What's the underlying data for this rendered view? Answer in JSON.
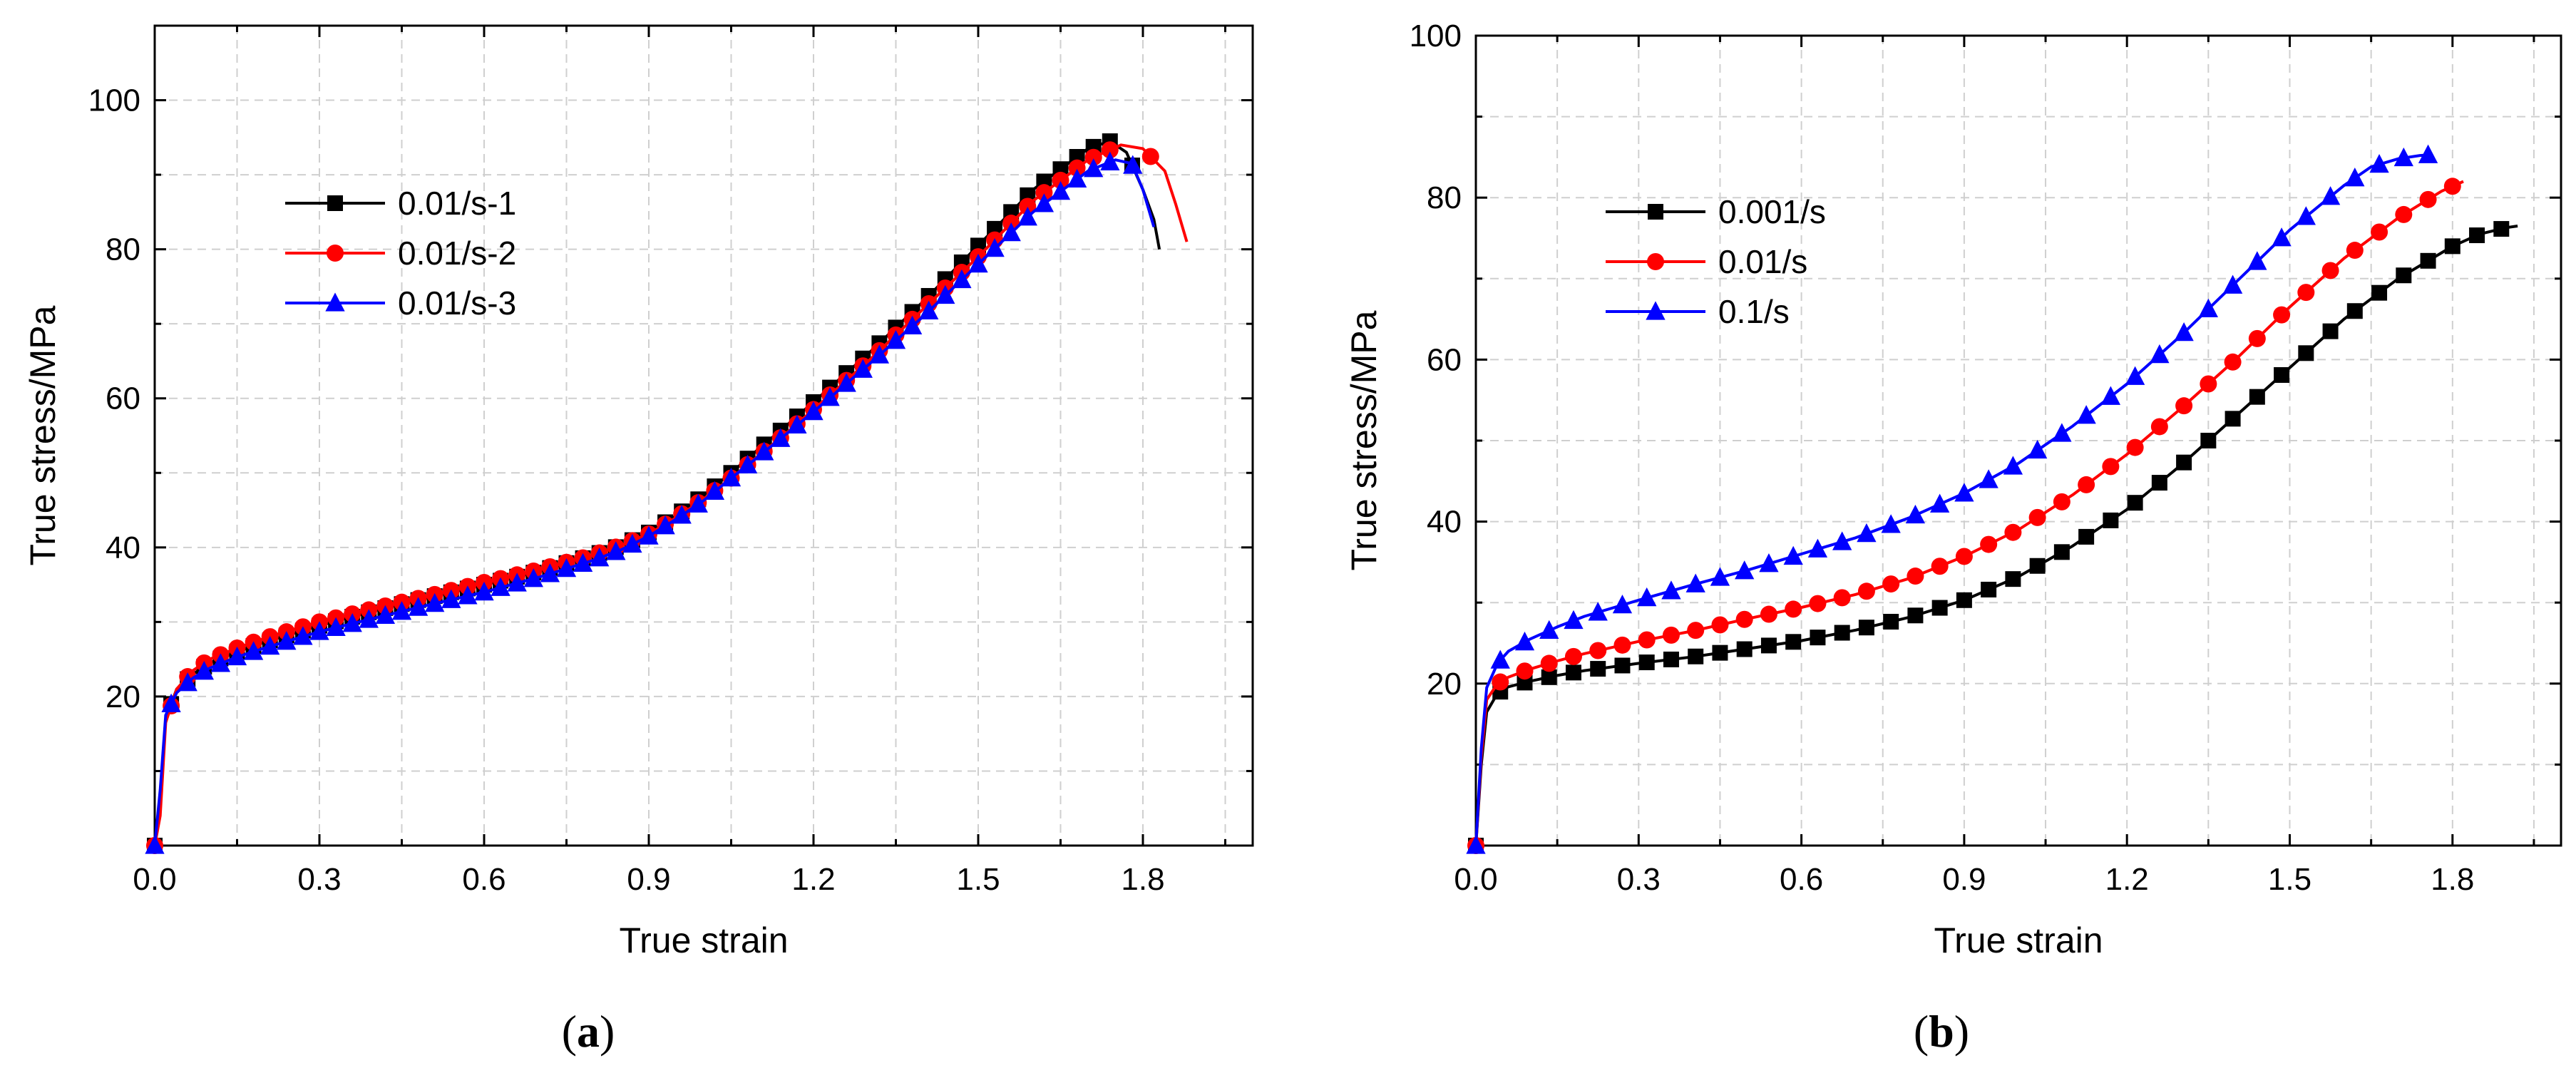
{
  "figure": {
    "panels": [
      "(a)",
      "(b)"
    ]
  },
  "chart_data": [
    {
      "type": "line",
      "panel_label": "(a)",
      "caption_letter": "a",
      "title": "",
      "xlabel": "True strain",
      "ylabel": "True stress/MPa",
      "xlim": [
        0,
        2.0
      ],
      "ylim": [
        0,
        110
      ],
      "xticks": [
        0.0,
        0.3,
        0.6,
        0.9,
        1.2,
        1.5,
        1.8
      ],
      "xtick_labels": [
        "0.0",
        "0.3",
        "0.6",
        "0.9",
        "1.2",
        "1.5",
        "1.8"
      ],
      "yticks": [
        20,
        40,
        60,
        80,
        100
      ],
      "ytick_labels": [
        "20",
        "40",
        "60",
        "80",
        "100"
      ],
      "grid": true,
      "legend_position": "upper-left",
      "series": [
        {
          "name": "0.01/s-1",
          "color": "#000000",
          "marker": "square",
          "x": [
            0.0,
            0.01,
            0.02,
            0.04,
            0.07,
            0.1,
            0.15,
            0.2,
            0.3,
            0.4,
            0.5,
            0.6,
            0.7,
            0.8,
            0.85,
            0.9,
            0.95,
            1.0,
            1.05,
            1.1,
            1.15,
            1.2,
            1.3,
            1.4,
            1.5,
            1.6,
            1.7,
            1.74,
            1.77,
            1.8,
            1.82,
            1.83
          ],
          "y": [
            0.0,
            7.0,
            17.0,
            21.0,
            23.0,
            24.5,
            26.0,
            27.3,
            29.5,
            31.5,
            33.3,
            35.0,
            36.8,
            39.0,
            40.3,
            42.0,
            44.3,
            47.0,
            50.0,
            53.2,
            56.3,
            59.5,
            66.0,
            73.0,
            80.5,
            88.0,
            93.5,
            94.5,
            93.0,
            88.0,
            84.0,
            80.0
          ],
          "marker_step": 0.03
        },
        {
          "name": "0.01/s-2",
          "color": "#ff0000",
          "marker": "circle",
          "x": [
            0.0,
            0.01,
            0.02,
            0.04,
            0.07,
            0.1,
            0.15,
            0.2,
            0.3,
            0.4,
            0.5,
            0.6,
            0.7,
            0.8,
            0.85,
            0.9,
            0.95,
            1.0,
            1.05,
            1.1,
            1.15,
            1.2,
            1.3,
            1.4,
            1.5,
            1.6,
            1.7,
            1.76,
            1.8,
            1.84,
            1.86,
            1.88
          ],
          "y": [
            0.0,
            4.0,
            16.5,
            21.0,
            23.5,
            25.0,
            26.5,
            27.8,
            30.0,
            31.8,
            33.5,
            35.3,
            37.0,
            39.0,
            40.3,
            41.8,
            44.0,
            46.5,
            49.3,
            52.3,
            55.3,
            58.5,
            65.0,
            72.0,
            79.0,
            86.5,
            92.0,
            94.0,
            93.5,
            90.5,
            86.0,
            81.0
          ],
          "marker_step": 0.03
        },
        {
          "name": "0.01/s-3",
          "color": "#0000ff",
          "marker": "triangle",
          "x": [
            0.0,
            0.01,
            0.02,
            0.04,
            0.07,
            0.1,
            0.15,
            0.2,
            0.3,
            0.4,
            0.5,
            0.6,
            0.7,
            0.8,
            0.85,
            0.9,
            0.95,
            1.0,
            1.05,
            1.1,
            1.15,
            1.2,
            1.3,
            1.4,
            1.5,
            1.6,
            1.7,
            1.75,
            1.78,
            1.8,
            1.82
          ],
          "y": [
            0.0,
            7.5,
            17.5,
            20.5,
            22.5,
            23.8,
            25.3,
            26.5,
            28.7,
            30.5,
            32.3,
            34.0,
            36.0,
            38.3,
            39.7,
            41.5,
            43.8,
            46.3,
            49.3,
            52.2,
            55.2,
            58.2,
            64.5,
            71.0,
            78.0,
            85.0,
            90.5,
            92.0,
            91.5,
            88.0,
            83.0
          ],
          "marker_step": 0.03
        }
      ]
    },
    {
      "type": "line",
      "panel_label": "(b)",
      "caption_letter": "b",
      "title": "",
      "xlabel": "True strain",
      "ylabel": "True stress/MPa",
      "xlim": [
        0,
        2.0
      ],
      "ylim": [
        0,
        100
      ],
      "xticks": [
        0.0,
        0.3,
        0.6,
        0.9,
        1.2,
        1.5,
        1.8
      ],
      "xtick_labels": [
        "0.0",
        "0.3",
        "0.6",
        "0.9",
        "1.2",
        "1.5",
        "1.8"
      ],
      "yticks": [
        20,
        40,
        60,
        80,
        100
      ],
      "ytick_labels": [
        "20",
        "40",
        "60",
        "80",
        "100"
      ],
      "grid": true,
      "legend_position": "upper-left",
      "series": [
        {
          "name": "0.001/s",
          "color": "#000000",
          "marker": "square",
          "x": [
            0.0,
            0.01,
            0.02,
            0.04,
            0.06,
            0.1,
            0.15,
            0.2,
            0.3,
            0.4,
            0.5,
            0.6,
            0.7,
            0.8,
            0.9,
            1.0,
            1.1,
            1.2,
            1.3,
            1.4,
            1.5,
            1.6,
            1.7,
            1.8,
            1.85,
            1.9,
            1.92
          ],
          "y": [
            0.0,
            10.0,
            16.5,
            18.8,
            19.6,
            20.3,
            21.0,
            21.6,
            22.5,
            23.3,
            24.3,
            25.3,
            26.6,
            28.2,
            30.3,
            33.2,
            37.0,
            41.5,
            47.0,
            53.0,
            59.0,
            65.0,
            70.0,
            74.0,
            75.5,
            76.3,
            76.5
          ],
          "marker_step": 0.045
        },
        {
          "name": "0.01/s",
          "color": "#ff0000",
          "marker": "circle",
          "x": [
            0.0,
            0.01,
            0.02,
            0.04,
            0.06,
            0.1,
            0.15,
            0.2,
            0.3,
            0.4,
            0.5,
            0.6,
            0.7,
            0.8,
            0.9,
            1.0,
            1.1,
            1.2,
            1.3,
            1.4,
            1.5,
            1.6,
            1.7,
            1.78,
            1.82
          ],
          "y": [
            0.0,
            11.0,
            18.0,
            20.0,
            20.8,
            21.8,
            22.8,
            23.7,
            25.2,
            26.5,
            28.0,
            29.4,
            31.0,
            33.0,
            35.7,
            39.0,
            43.3,
            48.3,
            54.0,
            60.0,
            66.5,
            72.5,
            77.5,
            80.8,
            82.0
          ],
          "marker_step": 0.045
        },
        {
          "name": "0.1/s",
          "color": "#0000ff",
          "marker": "triangle",
          "x": [
            0.0,
            0.01,
            0.02,
            0.04,
            0.06,
            0.1,
            0.15,
            0.2,
            0.3,
            0.4,
            0.5,
            0.6,
            0.7,
            0.8,
            0.9,
            1.0,
            1.1,
            1.2,
            1.3,
            1.4,
            1.5,
            1.6,
            1.65,
            1.7,
            1.74,
            1.76
          ],
          "y": [
            0.0,
            12.0,
            19.5,
            22.5,
            24.0,
            25.5,
            27.0,
            28.3,
            30.3,
            32.2,
            34.0,
            36.0,
            38.0,
            40.5,
            43.5,
            47.2,
            51.8,
            57.0,
            63.0,
            69.5,
            76.0,
            81.5,
            83.8,
            84.8,
            85.2,
            85.3
          ],
          "marker_step": 0.045
        }
      ]
    }
  ]
}
